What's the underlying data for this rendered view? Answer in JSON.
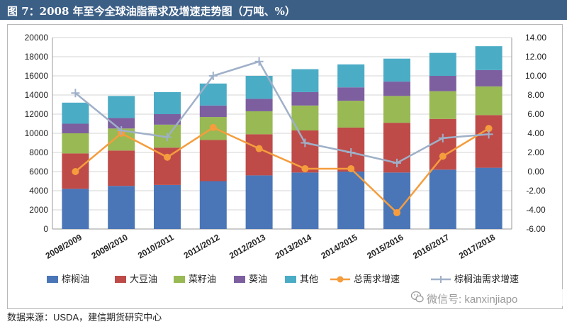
{
  "title": "图 7：2008 年至今全球油脂需求及增速走势图（万吨、%）",
  "title_watermark": "",
  "source": "数据来源：USDA，建信期货研究中心",
  "wechat": {
    "icon": "wechat-icon",
    "text": "微信号: kanxinjiapo"
  },
  "chart_data": {
    "type": "bar",
    "subtype": "stacked-bar-with-lines",
    "categories": [
      "2008/2009",
      "2009/2010",
      "2010/2011",
      "2011/2012",
      "2012/2013",
      "2013/2014",
      "2014/2015",
      "2015/2016",
      "2016/2017",
      "2017/2018"
    ],
    "y_left": {
      "min": 0,
      "max": 20000,
      "step": 2000,
      "ticks": [
        "0",
        "2000",
        "4000",
        "6000",
        "8000",
        "10000",
        "12000",
        "14000",
        "16000",
        "18000",
        "20000"
      ]
    },
    "y_right": {
      "min": -6,
      "max": 14,
      "step": 2,
      "ticks": [
        "-6.00",
        "-4.00",
        "-2.00",
        "0.00",
        "2.00",
        "4.00",
        "6.00",
        "8.00",
        "10.00",
        "12.00",
        "14.00"
      ]
    },
    "grid": true,
    "legend_position": "bottom",
    "bar_series": [
      {
        "name": "棕榈油",
        "color": "#4a76b8",
        "values": [
          4200,
          4500,
          4600,
          5000,
          5600,
          5900,
          6000,
          5900,
          6200,
          6400
        ]
      },
      {
        "name": "大豆油",
        "color": "#be4b48",
        "values": [
          3700,
          3700,
          3900,
          4300,
          4300,
          4400,
          4600,
          5200,
          5300,
          5500
        ]
      },
      {
        "name": "菜籽油",
        "color": "#98b954",
        "values": [
          2100,
          2300,
          2400,
          2400,
          2400,
          2600,
          2800,
          2800,
          2900,
          3000
        ]
      },
      {
        "name": "葵油",
        "color": "#7d5fa0",
        "values": [
          1000,
          1100,
          1100,
          1200,
          1300,
          1400,
          1400,
          1500,
          1600,
          1700
        ]
      },
      {
        "name": "其他",
        "color": "#4bacc6",
        "values": [
          2200,
          2300,
          2300,
          2300,
          2400,
          2400,
          2400,
          2400,
          2400,
          2500
        ]
      }
    ],
    "line_series": [
      {
        "name": "总需求增速",
        "color": "#f59d3d",
        "marker": "circle",
        "axis": "right",
        "values": [
          0.0,
          4.0,
          1.5,
          4.6,
          2.4,
          0.3,
          0.3,
          -4.3,
          1.6,
          4.5
        ]
      },
      {
        "name": "棕榈油需求增速",
        "color": "#9fb0c8",
        "marker": "plus",
        "axis": "right",
        "values": [
          8.2,
          4.3,
          3.6,
          10.0,
          11.5,
          3.0,
          2.0,
          0.9,
          3.5,
          3.9
        ]
      }
    ]
  }
}
